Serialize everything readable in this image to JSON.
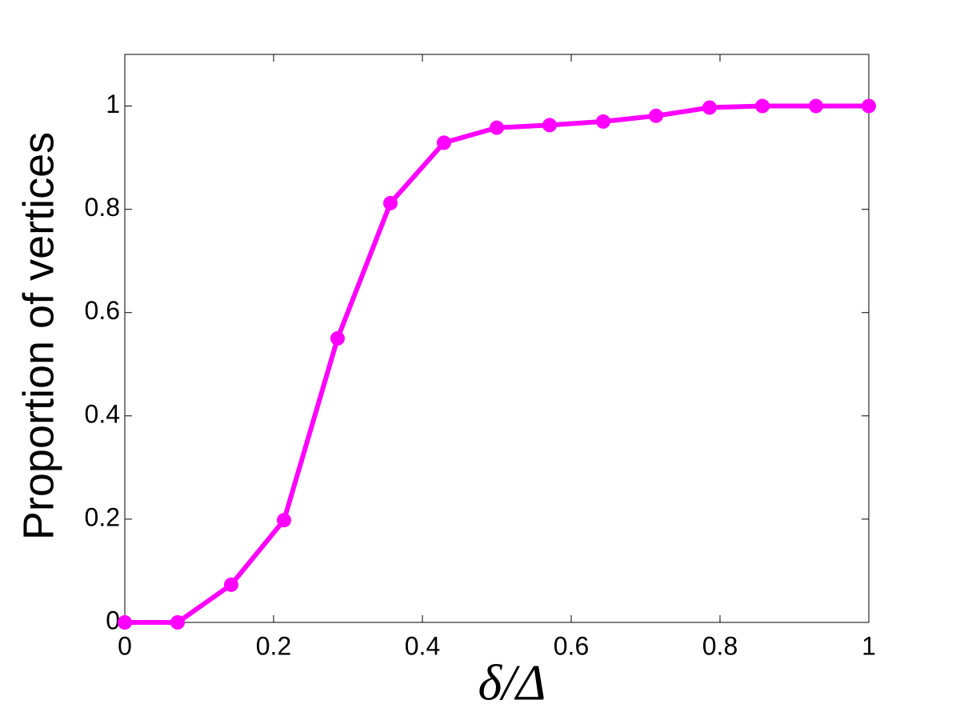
{
  "chart_data": {
    "type": "line",
    "xlabel": "δ/Δ",
    "ylabel": "Proportion of vertices",
    "x": [
      0,
      0.071,
      0.143,
      0.214,
      0.286,
      0.357,
      0.429,
      0.5,
      0.571,
      0.643,
      0.714,
      0.786,
      0.857,
      0.929,
      1
    ],
    "series": [
      {
        "color": "#ff00ff",
        "values": [
          0,
          0,
          0.073,
          0.198,
          0.55,
          0.812,
          0.929,
          0.958,
          0.963,
          0.97,
          0.981,
          0.997,
          1,
          1,
          1
        ]
      }
    ],
    "xlim": [
      0,
      1
    ],
    "xticks": [
      0,
      0.2,
      0.4,
      0.6,
      0.8,
      1
    ],
    "ylim": [
      0,
      1.1
    ],
    "yticks": [
      0,
      0.2,
      0.4,
      0.6,
      0.8,
      1
    ],
    "grid": false
  }
}
